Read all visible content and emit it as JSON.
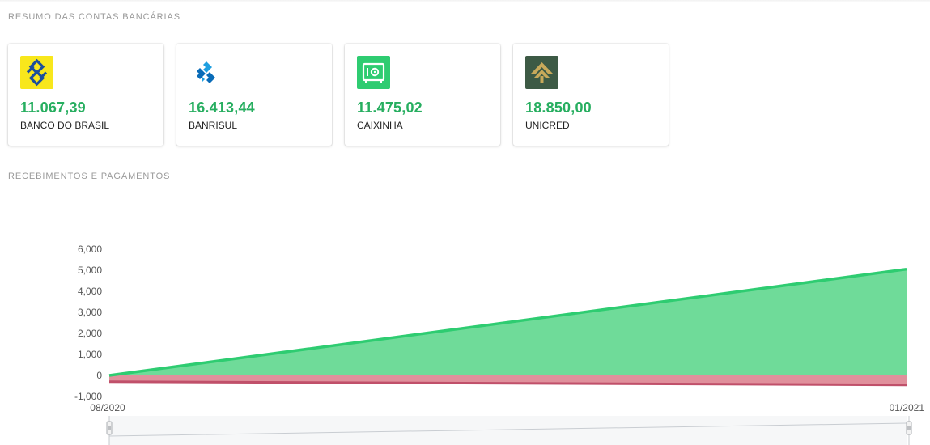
{
  "sections": {
    "accounts_title": "RESUMO DAS CONTAS BANCÁRIAS",
    "chart_title": "RECEBIMENTOS E PAGAMENTOS"
  },
  "accounts": [
    {
      "amount": "11.067,39",
      "name": "BANCO DO BRASIL",
      "logo": "banco-do-brasil-logo",
      "color": "#f8e71c"
    },
    {
      "amount": "16.413,44",
      "name": "BANRISUL",
      "logo": "banrisul-logo",
      "color": "#0077c8"
    },
    {
      "amount": "11.475,02",
      "name": "CAIXINHA",
      "logo": "safe-icon",
      "color": "#2ecc71"
    },
    {
      "amount": "18.850,00",
      "name": "UNICRED",
      "logo": "unicred-logo",
      "color": "#3d5a45"
    }
  ],
  "colors": {
    "amount_green": "#27ae60",
    "receipts_line": "#2ecc71",
    "receipts_fill": "#6fdb99",
    "payments_fill": "#e0909c",
    "payments_line": "#c0506a"
  },
  "chart_data": {
    "type": "area",
    "x": [
      "08/2020",
      "01/2021"
    ],
    "series": [
      {
        "values": [
          0,
          5050
        ]
      },
      {
        "values": [
          -300,
          -450
        ]
      }
    ],
    "yticks": [
      "6,000",
      "5,000",
      "4,000",
      "3,000",
      "2,000",
      "1,000",
      "0",
      "-1,000"
    ],
    "ytick_values": [
      6000,
      5000,
      4000,
      3000,
      2000,
      1000,
      0,
      -1000
    ],
    "ylim": [
      -1000,
      6000
    ],
    "grid": false,
    "navigator": true
  }
}
